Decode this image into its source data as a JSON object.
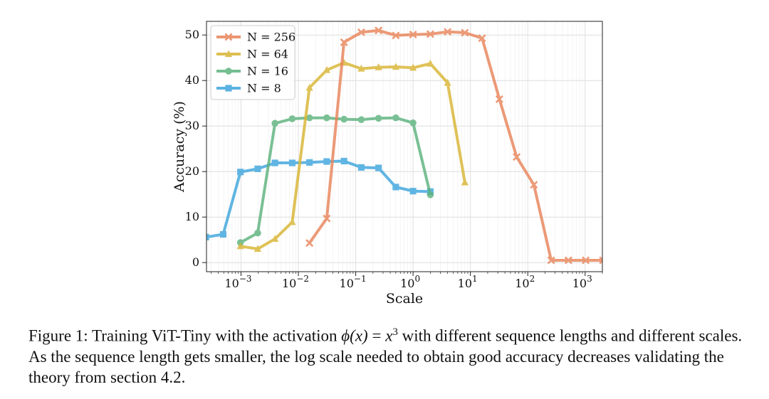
{
  "chart_data": {
    "type": "line",
    "xlabel": "Scale",
    "ylabel": "Accuracy (%)",
    "xscale": "log",
    "xlim": [
      0.00025,
      2000
    ],
    "ylim": [
      -2,
      53
    ],
    "x_ticks": [
      {
        "value": 0.001,
        "base": "10",
        "exp": "−3"
      },
      {
        "value": 0.01,
        "base": "10",
        "exp": "−2"
      },
      {
        "value": 0.1,
        "base": "10",
        "exp": "−1"
      },
      {
        "value": 1,
        "base": "10",
        "exp": "0"
      },
      {
        "value": 10,
        "base": "10",
        "exp": "1"
      },
      {
        "value": 100,
        "base": "10",
        "exp": "2"
      },
      {
        "value": 1000,
        "base": "10",
        "exp": "3"
      }
    ],
    "y_ticks": [
      0,
      10,
      20,
      30,
      40,
      50
    ],
    "grid": true,
    "legend_position": "top-left",
    "series": [
      {
        "name": "N = 256",
        "color": "#E8845A",
        "marker": "x",
        "x": [
          0.015625,
          0.03125,
          0.0625,
          0.125,
          0.25,
          0.5,
          1,
          2,
          4,
          8,
          16,
          32,
          64,
          128,
          256,
          512,
          1024,
          2048
        ],
        "y": [
          4.3,
          9.7,
          48.4,
          50.6,
          51.0,
          49.9,
          50.1,
          50.2,
          50.7,
          50.5,
          49.3,
          35.9,
          23.2,
          17.1,
          0.5,
          0.5,
          0.5,
          0.5
        ]
      },
      {
        "name": "N = 64",
        "color": "#D9B534",
        "marker": "triangle",
        "x": [
          0.0009765625,
          0.001953125,
          0.00390625,
          0.0078125,
          0.015625,
          0.03125,
          0.0625,
          0.125,
          0.25,
          0.5,
          1,
          2,
          4,
          8
        ],
        "y": [
          3.6,
          3.0,
          5.2,
          8.9,
          38.4,
          42.3,
          43.9,
          42.6,
          42.9,
          43.0,
          42.8,
          43.7,
          39.5,
          17.6
        ]
      },
      {
        "name": "N = 16",
        "color": "#5DB37E",
        "marker": "circle",
        "x": [
          0.0009765625,
          0.001953125,
          0.00390625,
          0.0078125,
          0.015625,
          0.03125,
          0.0625,
          0.125,
          0.25,
          0.5,
          1,
          2
        ],
        "y": [
          4.4,
          6.5,
          30.6,
          31.6,
          31.8,
          31.8,
          31.5,
          31.4,
          31.7,
          31.8,
          30.7,
          14.9
        ]
      },
      {
        "name": "N = 8",
        "color": "#3FA6DD",
        "marker": "square",
        "x": [
          0.000244140625,
          0.00048828125,
          0.0009765625,
          0.001953125,
          0.00390625,
          0.0078125,
          0.015625,
          0.03125,
          0.0625,
          0.125,
          0.25,
          0.5,
          1,
          2
        ],
        "y": [
          5.6,
          6.2,
          19.9,
          20.6,
          21.9,
          21.9,
          22.0,
          22.2,
          22.3,
          20.9,
          20.8,
          16.6,
          15.7,
          15.6
        ]
      }
    ]
  },
  "caption": {
    "part1": "Figure 1: Training ViT-Tiny with the activation ",
    "math_phi": "ϕ(x)",
    "math_eq": " = ",
    "math_x": "x",
    "math_exp": "3",
    "part2": " with different sequence lengths and different scales. As the sequence length gets smaller, the log scale needed to obtain good accuracy decreases validating the theory from section 4.2."
  }
}
